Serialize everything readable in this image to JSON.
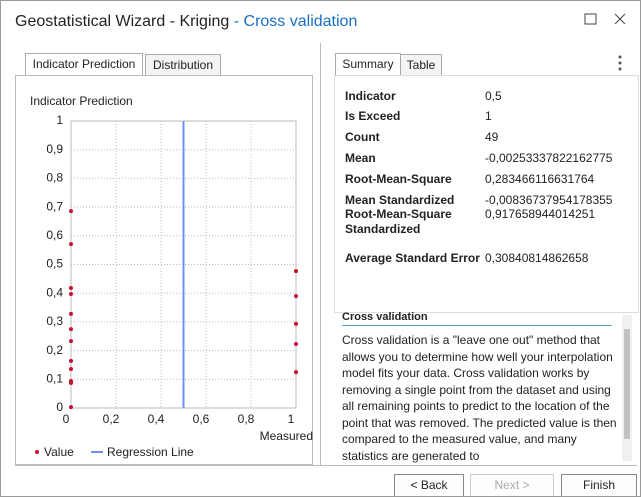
{
  "window": {
    "title": "Geostatistical Wizard - Kriging",
    "step": "- Cross validation"
  },
  "left_tabs": [
    "Indicator Prediction",
    "Distribution"
  ],
  "chart_data": {
    "type": "scatter",
    "ylabel": "Indicator Prediction",
    "xlabel": "Measured",
    "xlim": [
      0,
      1
    ],
    "ylim": [
      0,
      1
    ],
    "xticks": [
      0,
      {
        "value": 0.2,
        "label": "0,2"
      },
      {
        "value": 0.4,
        "label": "0,4"
      },
      {
        "value": 0.6,
        "label": "0,6"
      },
      {
        "value": 0.8,
        "label": "0,8"
      },
      1
    ],
    "yticks": [
      0,
      {
        "value": 0.1,
        "label": "0,1"
      },
      {
        "value": 0.2,
        "label": "0,2"
      },
      {
        "value": 0.3,
        "label": "0,3"
      },
      {
        "value": 0.4,
        "label": "0,4"
      },
      {
        "value": 0.5,
        "label": "0,5"
      },
      {
        "value": 0.6,
        "label": "0,6"
      },
      {
        "value": 0.7,
        "label": "0,7"
      },
      {
        "value": 0.8,
        "label": "0,8"
      },
      {
        "value": 0.9,
        "label": "0,9"
      },
      1
    ],
    "grid": true,
    "series": [
      {
        "name": "Value",
        "type": "scatter",
        "color": "#c8102e",
        "x": [
          0,
          0,
          0,
          0,
          0,
          0,
          0,
          0,
          0,
          0,
          0,
          0,
          1,
          1,
          1,
          1,
          1
        ],
        "y": [
          0.686,
          0.571,
          0.418,
          0.397,
          0.328,
          0.275,
          0.233,
          0.164,
          0.136,
          0.094,
          0.087,
          0.003,
          0.477,
          0.39,
          0.293,
          0.223,
          0.125
        ]
      },
      {
        "name": "Regression Line",
        "type": "line",
        "color": "#6f8ff5",
        "x": [
          0.5,
          0.5
        ],
        "y": [
          0,
          1
        ]
      }
    ]
  },
  "right_tabs": [
    "Summary",
    "Table"
  ],
  "summary": [
    [
      "Indicator",
      "0,5"
    ],
    [
      "Is Exceed",
      "1"
    ],
    [
      "Count",
      "49"
    ],
    [
      "Mean",
      "-0,00253337822162775"
    ],
    [
      "Root-Mean-Square",
      "0,283466116631764"
    ],
    [
      "Mean Standardized",
      "-0,00836737954178355"
    ],
    [
      "Root-Mean-Square Standardized",
      "0,917658944014251"
    ],
    [
      "Average Standard Error",
      "0,30840814862658"
    ]
  ],
  "help": {
    "heading": "Cross validation",
    "text": "Cross validation is a \"leave one out\" method that allows you to determine how well your interpolation model fits your data. Cross validation works by removing a single point from the dataset and using all remaining points to predict to the location of the point that was removed. The predicted value is then compared to the measured value, and many statistics are generated to"
  },
  "buttons": [
    "< Back",
    "Next >",
    "Finish"
  ]
}
